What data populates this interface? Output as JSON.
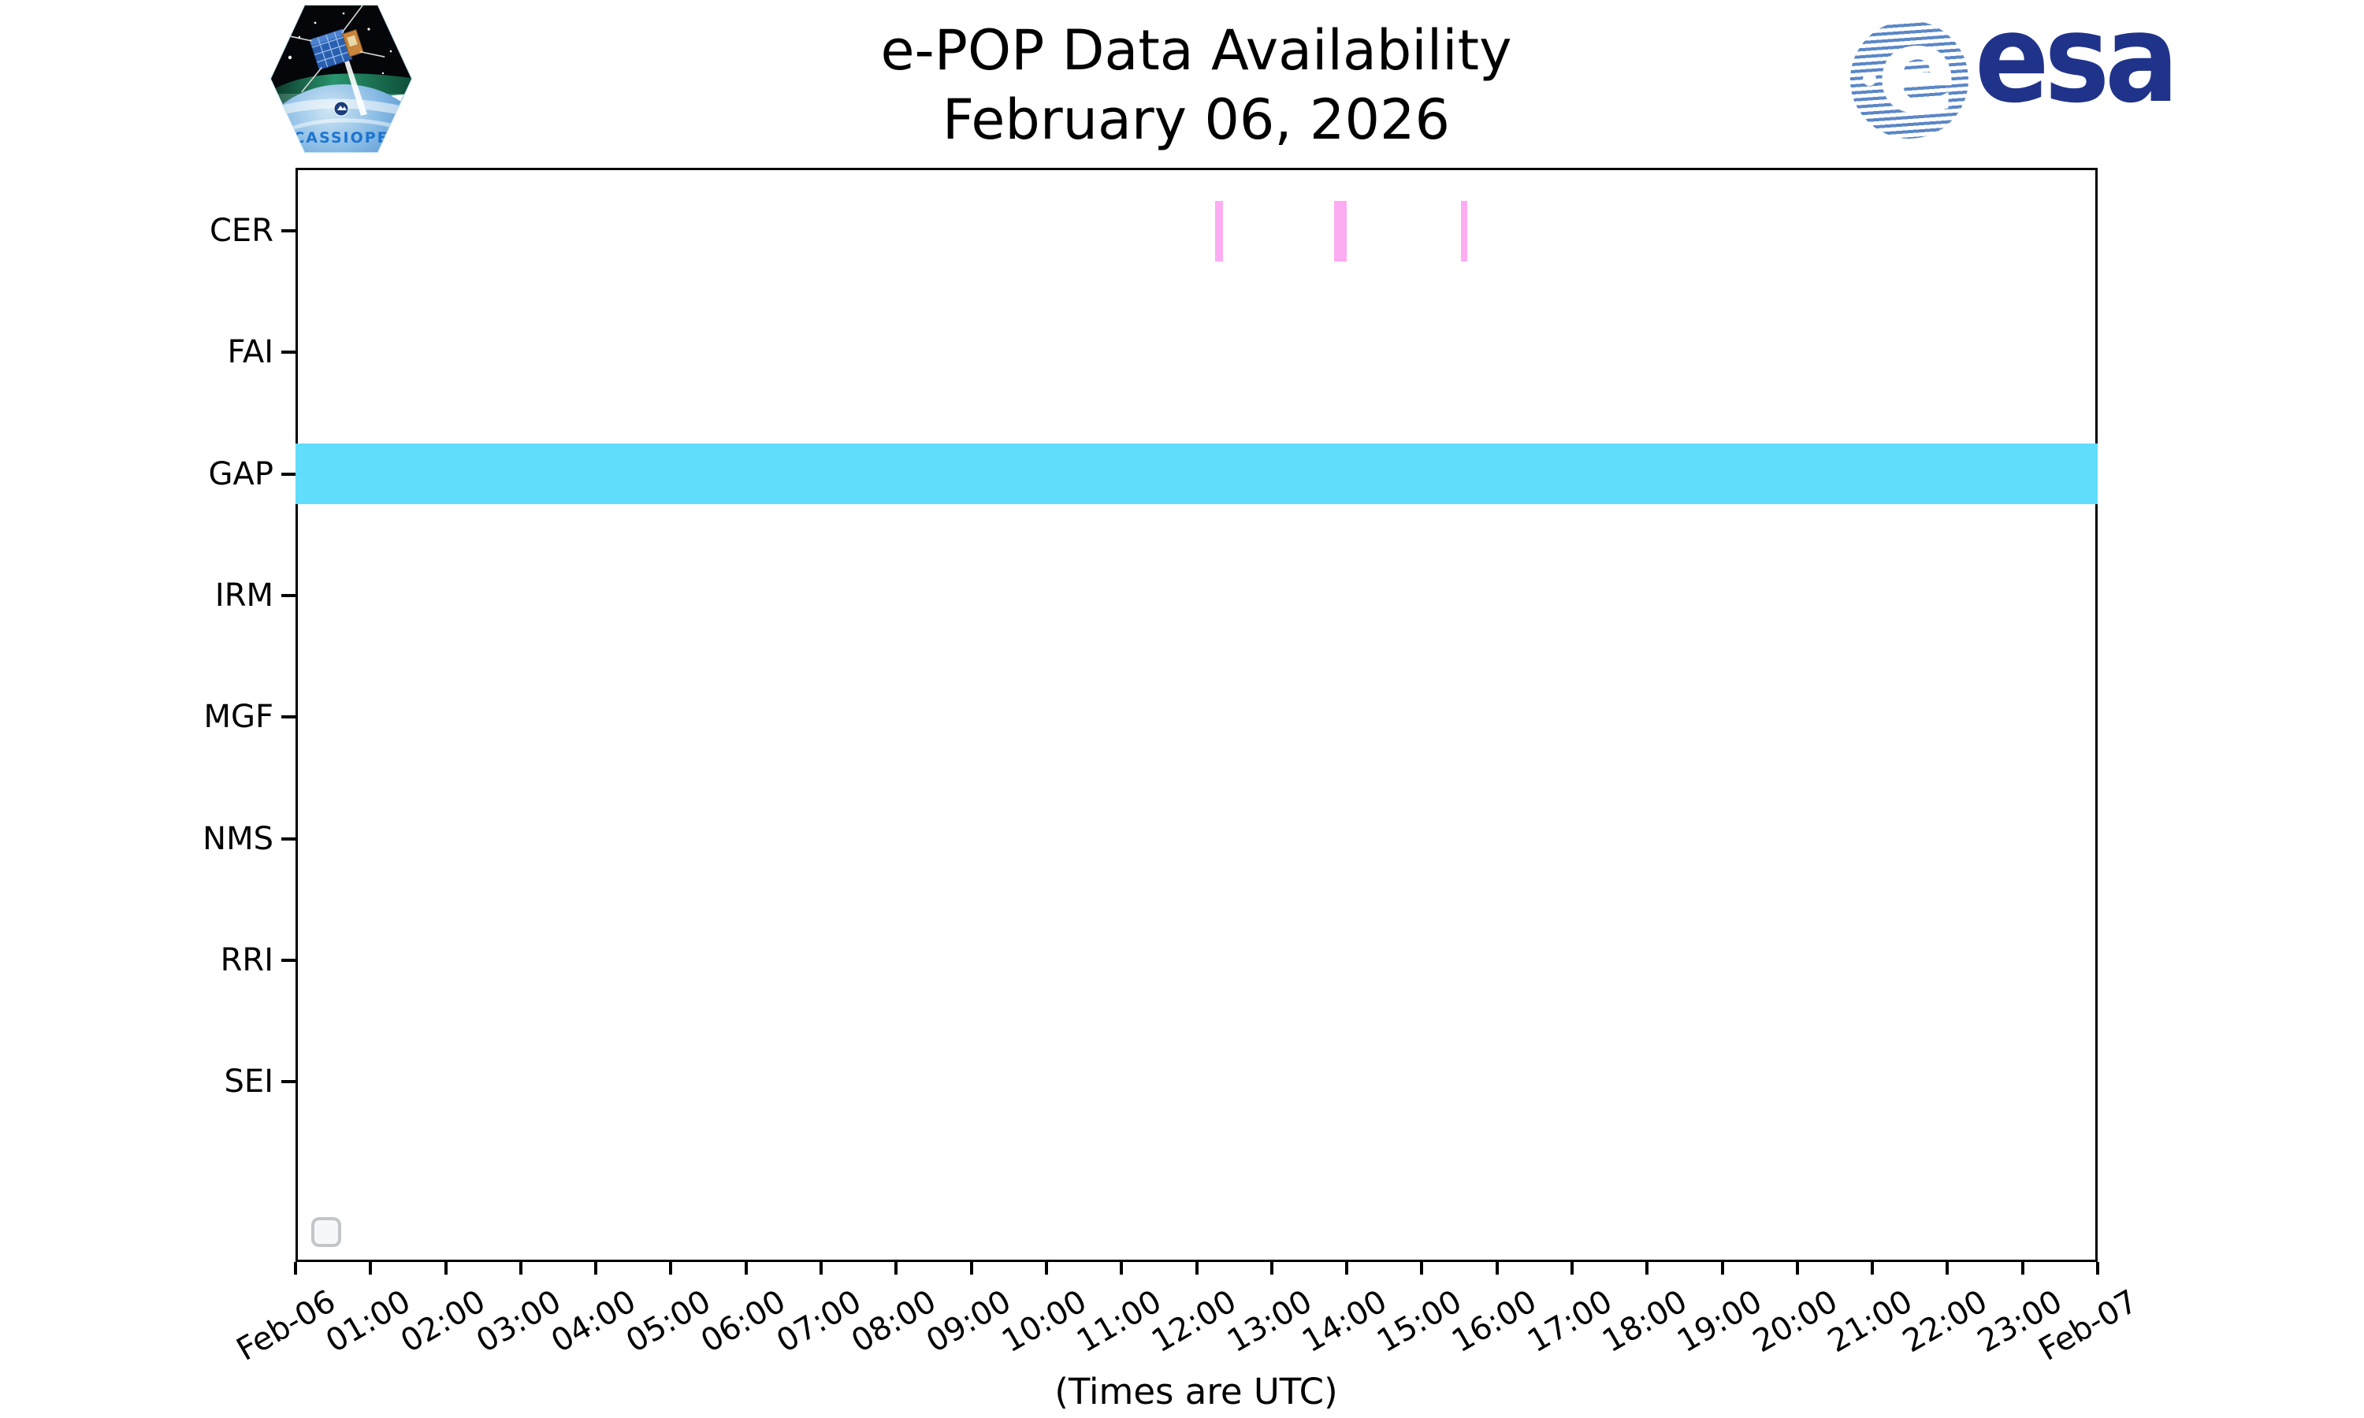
{
  "page": {
    "title_line1": "e-POP Data Availability",
    "title_line2": "February 06, 2026"
  },
  "branding": {
    "cassiope_patch_label": "CASSIOPE",
    "esa_wordmark": "esa",
    "esa_globe_letter": "e"
  },
  "colors": {
    "cer_bar_pink": "#fdacf2",
    "gap_band_cyan": "#5fddfb",
    "esa_navy": "#20338a",
    "esa_globe_blue": "#5b87c7",
    "cassiope_text_blue": "#1d74cf",
    "axis_black": "#000000"
  },
  "widgets": {
    "checkbox_checked": false
  },
  "chart_data": {
    "type": "timeline",
    "title": "e-POP Data Availability",
    "subtitle": "February 06, 2026",
    "xlabel": "(Times are UTC)",
    "grid": false,
    "legend": "none",
    "x_axis": {
      "start": "Feb-06 00:00 UTC",
      "end": "Feb-07 00:00 UTC",
      "hours_span": 24,
      "tick_labels": [
        "Feb-06",
        "01:00",
        "02:00",
        "03:00",
        "04:00",
        "05:00",
        "06:00",
        "07:00",
        "08:00",
        "09:00",
        "10:00",
        "11:00",
        "12:00",
        "13:00",
        "14:00",
        "15:00",
        "16:00",
        "17:00",
        "18:00",
        "19:00",
        "20:00",
        "21:00",
        "22:00",
        "23:00",
        "Feb-07"
      ]
    },
    "instruments": [
      "CER",
      "FAI",
      "GAP",
      "IRM",
      "MGF",
      "NMS",
      "RRI",
      "SEI"
    ],
    "availability": [
      {
        "instrument": "CER",
        "color": "#fdacf2",
        "intervals": [
          {
            "start": "12:15",
            "end": "12:21"
          },
          {
            "start": "13:50",
            "end": "14:00"
          },
          {
            "start": "15:31",
            "end": "15:36"
          }
        ]
      },
      {
        "instrument": "FAI",
        "color": "#fdacf2",
        "intervals": []
      },
      {
        "instrument": "GAP",
        "color": "#5fddfb",
        "intervals": [
          {
            "start": "00:00",
            "end": "24:00"
          }
        ]
      },
      {
        "instrument": "IRM",
        "color": "#fdacf2",
        "intervals": []
      },
      {
        "instrument": "MGF",
        "color": "#fdacf2",
        "intervals": []
      },
      {
        "instrument": "NMS",
        "color": "#fdacf2",
        "intervals": []
      },
      {
        "instrument": "RRI",
        "color": "#fdacf2",
        "intervals": []
      },
      {
        "instrument": "SEI",
        "color": "#fdacf2",
        "intervals": []
      }
    ]
  }
}
